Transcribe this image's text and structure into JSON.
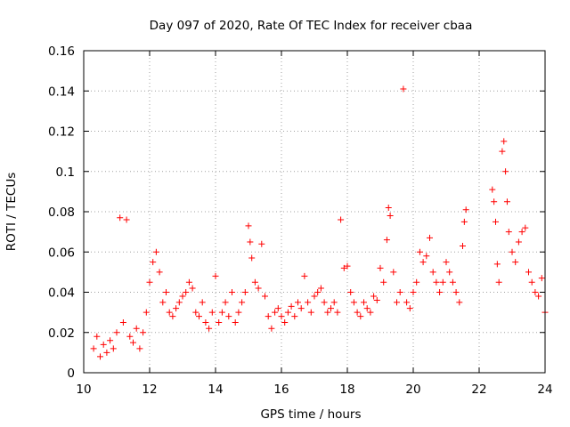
{
  "chart_data": {
    "type": "scatter",
    "title": "Day 097 of 2020, Rate Of TEC Index for receiver cbaa",
    "xlabel": "GPS time / hours",
    "ylabel": "ROTI / TECUs",
    "xlim": [
      10,
      24
    ],
    "ylim": [
      0,
      0.16
    ],
    "x_ticks": [
      "10",
      "12",
      "14",
      "16",
      "18",
      "20",
      "22",
      "24"
    ],
    "y_ticks": [
      "0",
      "0.02",
      "0.04",
      "0.06",
      "0.08",
      "0.1",
      "0.12",
      "0.14",
      "0.16"
    ],
    "grid": true,
    "marker": "plus",
    "color": "#ff0000",
    "series": [
      {
        "points": [
          [
            10.3,
            0.012
          ],
          [
            10.4,
            0.018
          ],
          [
            10.5,
            0.008
          ],
          [
            10.6,
            0.014
          ],
          [
            10.7,
            0.01
          ],
          [
            10.8,
            0.016
          ],
          [
            10.9,
            0.012
          ],
          [
            11.0,
            0.02
          ],
          [
            11.1,
            0.077
          ],
          [
            11.2,
            0.025
          ],
          [
            11.3,
            0.076
          ],
          [
            11.4,
            0.018
          ],
          [
            11.5,
            0.015
          ],
          [
            11.6,
            0.022
          ],
          [
            11.7,
            0.012
          ],
          [
            11.8,
            0.02
          ],
          [
            11.9,
            0.03
          ],
          [
            12.0,
            0.045
          ],
          [
            12.1,
            0.055
          ],
          [
            12.2,
            0.06
          ],
          [
            12.3,
            0.05
          ],
          [
            12.4,
            0.035
          ],
          [
            12.5,
            0.04
          ],
          [
            12.6,
            0.03
          ],
          [
            12.7,
            0.028
          ],
          [
            12.8,
            0.032
          ],
          [
            12.9,
            0.035
          ],
          [
            13.0,
            0.038
          ],
          [
            13.1,
            0.04
          ],
          [
            13.2,
            0.045
          ],
          [
            13.3,
            0.042
          ],
          [
            13.4,
            0.03
          ],
          [
            13.5,
            0.028
          ],
          [
            13.6,
            0.035
          ],
          [
            13.7,
            0.025
          ],
          [
            13.8,
            0.022
          ],
          [
            13.9,
            0.03
          ],
          [
            14.0,
            0.048
          ],
          [
            14.1,
            0.025
          ],
          [
            14.2,
            0.03
          ],
          [
            14.3,
            0.035
          ],
          [
            14.4,
            0.028
          ],
          [
            14.5,
            0.04
          ],
          [
            14.6,
            0.025
          ],
          [
            14.7,
            0.03
          ],
          [
            14.8,
            0.035
          ],
          [
            14.9,
            0.04
          ],
          [
            15.0,
            0.073
          ],
          [
            15.05,
            0.065
          ],
          [
            15.1,
            0.057
          ],
          [
            15.2,
            0.045
          ],
          [
            15.3,
            0.042
          ],
          [
            15.4,
            0.064
          ],
          [
            15.5,
            0.038
          ],
          [
            15.6,
            0.028
          ],
          [
            15.7,
            0.022
          ],
          [
            15.8,
            0.03
          ],
          [
            15.9,
            0.032
          ],
          [
            16.0,
            0.028
          ],
          [
            16.1,
            0.025
          ],
          [
            16.2,
            0.03
          ],
          [
            16.3,
            0.033
          ],
          [
            16.4,
            0.028
          ],
          [
            16.5,
            0.035
          ],
          [
            16.6,
            0.032
          ],
          [
            16.7,
            0.048
          ],
          [
            16.8,
            0.035
          ],
          [
            16.9,
            0.03
          ],
          [
            17.0,
            0.038
          ],
          [
            17.1,
            0.04
          ],
          [
            17.2,
            0.042
          ],
          [
            17.3,
            0.035
          ],
          [
            17.4,
            0.03
          ],
          [
            17.5,
            0.032
          ],
          [
            17.6,
            0.035
          ],
          [
            17.7,
            0.03
          ],
          [
            17.8,
            0.076
          ],
          [
            17.9,
            0.052
          ],
          [
            18.0,
            0.053
          ],
          [
            18.1,
            0.04
          ],
          [
            18.2,
            0.035
          ],
          [
            18.3,
            0.03
          ],
          [
            18.4,
            0.028
          ],
          [
            18.5,
            0.035
          ],
          [
            18.6,
            0.032
          ],
          [
            18.7,
            0.03
          ],
          [
            18.8,
            0.038
          ],
          [
            18.9,
            0.036
          ],
          [
            19.0,
            0.052
          ],
          [
            19.1,
            0.045
          ],
          [
            19.2,
            0.066
          ],
          [
            19.25,
            0.082
          ],
          [
            19.3,
            0.078
          ],
          [
            19.4,
            0.05
          ],
          [
            19.5,
            0.035
          ],
          [
            19.6,
            0.04
          ],
          [
            19.7,
            0.141
          ],
          [
            19.8,
            0.035
          ],
          [
            19.9,
            0.032
          ],
          [
            20.0,
            0.04
          ],
          [
            20.1,
            0.045
          ],
          [
            20.2,
            0.06
          ],
          [
            20.3,
            0.055
          ],
          [
            20.4,
            0.058
          ],
          [
            20.5,
            0.067
          ],
          [
            20.6,
            0.05
          ],
          [
            20.7,
            0.045
          ],
          [
            20.8,
            0.04
          ],
          [
            20.9,
            0.045
          ],
          [
            21.0,
            0.055
          ],
          [
            21.1,
            0.05
          ],
          [
            21.2,
            0.045
          ],
          [
            21.3,
            0.04
          ],
          [
            21.4,
            0.035
          ],
          [
            21.5,
            0.063
          ],
          [
            21.55,
            0.075
          ],
          [
            21.6,
            0.081
          ],
          [
            22.4,
            0.091
          ],
          [
            22.45,
            0.085
          ],
          [
            22.5,
            0.075
          ],
          [
            22.55,
            0.054
          ],
          [
            22.6,
            0.045
          ],
          [
            22.7,
            0.11
          ],
          [
            22.75,
            0.115
          ],
          [
            22.8,
            0.1
          ],
          [
            22.85,
            0.085
          ],
          [
            22.9,
            0.07
          ],
          [
            23.0,
            0.06
          ],
          [
            23.1,
            0.055
          ],
          [
            23.2,
            0.065
          ],
          [
            23.3,
            0.07
          ],
          [
            23.4,
            0.072
          ],
          [
            23.5,
            0.05
          ],
          [
            23.6,
            0.045
          ],
          [
            23.7,
            0.04
          ],
          [
            23.8,
            0.038
          ],
          [
            23.9,
            0.047
          ],
          [
            24.0,
            0.03
          ]
        ]
      }
    ]
  }
}
